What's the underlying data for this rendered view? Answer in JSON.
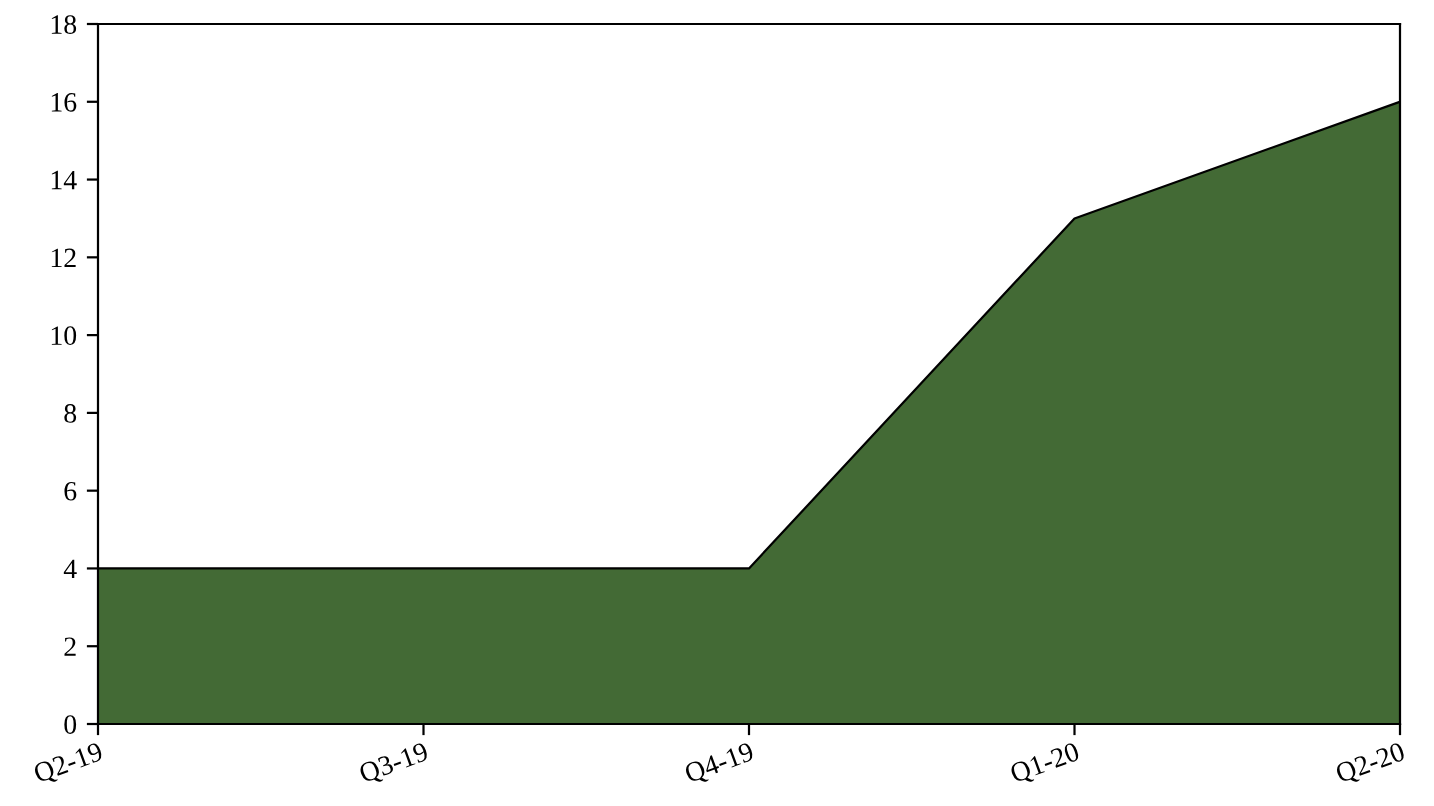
{
  "chart_data": {
    "type": "area",
    "categories": [
      "Q2-19",
      "Q3-19",
      "Q4-19",
      "Q1-20",
      "Q2-20"
    ],
    "series": [
      {
        "color": "#436a35",
        "values": [
          4,
          4,
          4,
          13,
          16
        ]
      }
    ],
    "ylim": [
      0,
      18
    ],
    "yticks": [
      0,
      2,
      4,
      6,
      8,
      10,
      12,
      14,
      16,
      18
    ],
    "grid": false,
    "legend": false
  }
}
